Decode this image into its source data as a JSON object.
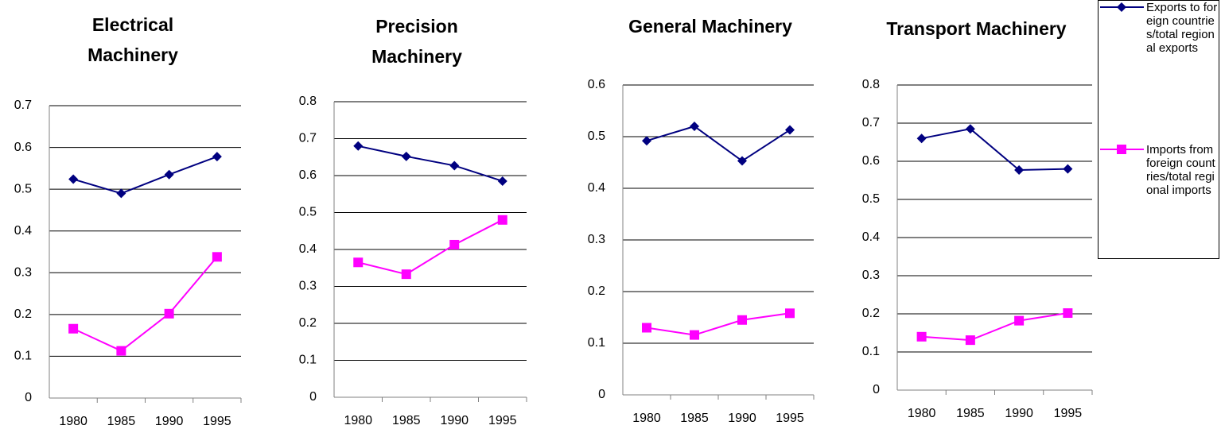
{
  "chart_data": [
    {
      "type": "line",
      "title": "Electrical Machinery",
      "categories": [
        "1980",
        "1985",
        "1990",
        "1995"
      ],
      "series": [
        {
          "name": "Exports to foreign countries/total regional exports",
          "color": "#000080",
          "marker": "diamond",
          "values": [
            0.524,
            0.49,
            0.535,
            0.578
          ]
        },
        {
          "name": "Imports from foreign countries/total regional imports",
          "color": "#ff00ff",
          "marker": "square",
          "values": [
            0.166,
            0.113,
            0.202,
            0.338
          ]
        }
      ],
      "ylim": [
        0,
        0.7
      ],
      "yticks": [
        0,
        0.1,
        0.2,
        0.3,
        0.4,
        0.5,
        0.6,
        0.7
      ],
      "grid": true
    },
    {
      "type": "line",
      "title": "Precision Machinery",
      "categories": [
        "1980",
        "1985",
        "1990",
        "1995"
      ],
      "series": [
        {
          "color": "#000080",
          "marker": "diamond",
          "values": [
            0.68,
            0.652,
            0.627,
            0.585
          ]
        },
        {
          "color": "#ff00ff",
          "marker": "square",
          "values": [
            0.365,
            0.333,
            0.413,
            0.48
          ]
        }
      ],
      "ylim": [
        0,
        0.8
      ],
      "yticks": [
        0,
        0.1,
        0.2,
        0.3,
        0.4,
        0.5,
        0.6,
        0.7,
        0.8
      ],
      "grid": true
    },
    {
      "type": "line",
      "title": "General Machinery",
      "categories": [
        "1980",
        "1985",
        "1990",
        "1995"
      ],
      "series": [
        {
          "color": "#000080",
          "marker": "diamond",
          "values": [
            0.492,
            0.52,
            0.453,
            0.513
          ]
        },
        {
          "color": "#ff00ff",
          "marker": "square",
          "values": [
            0.13,
            0.116,
            0.145,
            0.158
          ]
        }
      ],
      "ylim": [
        0,
        0.6
      ],
      "yticks": [
        0,
        0.1,
        0.2,
        0.3,
        0.4,
        0.5,
        0.6
      ],
      "grid": true
    },
    {
      "type": "line",
      "title": "Transport Machinery",
      "categories": [
        "1980",
        "1985",
        "1990",
        "1995"
      ],
      "series": [
        {
          "color": "#000080",
          "marker": "diamond",
          "values": [
            0.66,
            0.685,
            0.577,
            0.58
          ]
        },
        {
          "color": "#ff00ff",
          "marker": "square",
          "values": [
            0.14,
            0.131,
            0.182,
            0.202
          ]
        }
      ],
      "ylim": [
        0,
        0.8
      ],
      "yticks": [
        0,
        0.1,
        0.2,
        0.3,
        0.4,
        0.5,
        0.6,
        0.7,
        0.8
      ],
      "grid": true
    }
  ]
}
